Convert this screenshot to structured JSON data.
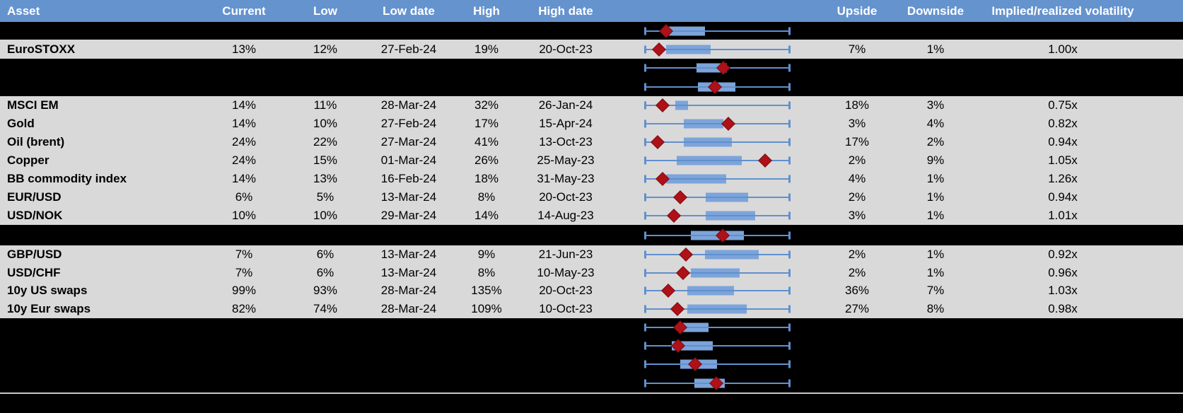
{
  "columns": [
    {
      "key": "asset",
      "label": "Asset"
    },
    {
      "key": "current",
      "label": "Current"
    },
    {
      "key": "low",
      "label": "Low"
    },
    {
      "key": "low_date",
      "label": "Low date"
    },
    {
      "key": "high",
      "label": "High"
    },
    {
      "key": "high_date",
      "label": "High date"
    },
    {
      "key": "upside",
      "label": "Upside"
    },
    {
      "key": "downside",
      "label": "Downside"
    },
    {
      "key": "implied_realized",
      "label": "Implied/realized volatility"
    }
  ],
  "colors": {
    "header_bg": "#6593CE",
    "header_text": "#ffffff",
    "light_row_bg": "#D9D9D9",
    "dark_row_bg": "#000000",
    "box_fill": "#7CA4DA",
    "whisker_line": "#6090CE",
    "marker_red": "#AE1118",
    "bottom_divider": "#C8C8C8"
  },
  "rows": [
    {
      "kind": "spacer",
      "asset": null
    },
    {
      "kind": "data",
      "asset": "EuroSTOXX",
      "current": "13%",
      "low": "12%",
      "low_date": "27-Feb-24",
      "high": "19%",
      "high_date": "20-Oct-23",
      "upside": "7%",
      "downside": "1%",
      "implied_realized": "1.00x"
    },
    {
      "kind": "spacer",
      "asset": null
    },
    {
      "kind": "spacer",
      "asset": null
    },
    {
      "kind": "data",
      "asset": "MSCI EM",
      "current": "14%",
      "low": "11%",
      "low_date": "28-Mar-24",
      "high": "32%",
      "high_date": "26-Jan-24",
      "upside": "18%",
      "downside": "3%",
      "implied_realized": "0.75x"
    },
    {
      "kind": "data",
      "asset": "Gold",
      "current": "14%",
      "low": "10%",
      "low_date": "27-Feb-24",
      "high": "17%",
      "high_date": "15-Apr-24",
      "upside": "3%",
      "downside": "4%",
      "implied_realized": "0.82x"
    },
    {
      "kind": "data",
      "asset": "Oil (brent)",
      "current": "24%",
      "low": "22%",
      "low_date": "27-Mar-24",
      "high": "41%",
      "high_date": "13-Oct-23",
      "upside": "17%",
      "downside": "2%",
      "implied_realized": "0.94x"
    },
    {
      "kind": "data",
      "asset": "Copper",
      "current": "24%",
      "low": "15%",
      "low_date": "01-Mar-24",
      "high": "26%",
      "high_date": "25-May-23",
      "upside": "2%",
      "downside": "9%",
      "implied_realized": "1.05x"
    },
    {
      "kind": "data",
      "asset": "BB commodity index",
      "current": "14%",
      "low": "13%",
      "low_date": "16-Feb-24",
      "high": "18%",
      "high_date": "31-May-23",
      "upside": "4%",
      "downside": "1%",
      "implied_realized": "1.26x"
    },
    {
      "kind": "data",
      "asset": "EUR/USD",
      "current": "6%",
      "low": "5%",
      "low_date": "13-Mar-24",
      "high": "8%",
      "high_date": "20-Oct-23",
      "upside": "2%",
      "downside": "1%",
      "implied_realized": "0.94x"
    },
    {
      "kind": "data",
      "asset": "USD/NOK",
      "current": "10%",
      "low": "10%",
      "low_date": "29-Mar-24",
      "high": "14%",
      "high_date": "14-Aug-23",
      "upside": "3%",
      "downside": "1%",
      "implied_realized": "1.01x"
    },
    {
      "kind": "spacer",
      "asset": null
    },
    {
      "kind": "data",
      "asset": "GBP/USD",
      "current": "7%",
      "low": "6%",
      "low_date": "13-Mar-24",
      "high": "9%",
      "high_date": "21-Jun-23",
      "upside": "2%",
      "downside": "1%",
      "implied_realized": "0.92x"
    },
    {
      "kind": "data",
      "asset": "USD/CHF",
      "current": "7%",
      "low": "6%",
      "low_date": "13-Mar-24",
      "high": "8%",
      "high_date": "10-May-23",
      "upside": "2%",
      "downside": "1%",
      "implied_realized": "0.96x"
    },
    {
      "kind": "data",
      "asset": "10y US swaps",
      "current": "99%",
      "low": "93%",
      "low_date": "28-Mar-24",
      "high": "135%",
      "high_date": "20-Oct-23",
      "upside": "36%",
      "downside": "7%",
      "implied_realized": "1.03x"
    },
    {
      "kind": "data",
      "asset": "10y Eur swaps",
      "current": "82%",
      "low": "74%",
      "low_date": "28-Mar-24",
      "high": "109%",
      "high_date": "10-Oct-23",
      "upside": "27%",
      "downside": "8%",
      "implied_realized": "0.98x"
    },
    {
      "kind": "spacer",
      "asset": null
    },
    {
      "kind": "spacer",
      "asset": null
    },
    {
      "kind": "spacer",
      "asset": null
    },
    {
      "kind": "spacer",
      "asset": null
    }
  ],
  "chart_data": {
    "type": "box_whisker",
    "orientation": "horizontal",
    "scale": {
      "min": 0,
      "max": 1,
      "note": "positions normalized to whisker span; every row's whiskers cover the full range"
    },
    "marker_glyph": "red diamond",
    "rows": [
      {
        "label": null,
        "whisker_low": 0,
        "box_low": 0.166,
        "box_high": 0.415,
        "whisker_high": 1,
        "marker": 0.146
      },
      {
        "label": "EuroSTOXX",
        "whisker_low": 0,
        "box_low": 0.146,
        "box_high": 0.454,
        "whisker_high": 1,
        "marker": 0.098
      },
      {
        "label": null,
        "whisker_low": 0,
        "box_low": 0.356,
        "box_high": 0.566,
        "whisker_high": 1,
        "marker": 0.541
      },
      {
        "label": null,
        "whisker_low": 0,
        "box_low": 0.366,
        "box_high": 0.624,
        "whisker_high": 1,
        "marker": 0.483
      },
      {
        "label": "MSCI EM",
        "whisker_low": 0,
        "box_low": 0.21,
        "box_high": 0.298,
        "whisker_high": 1,
        "marker": 0.122
      },
      {
        "label": "Gold",
        "whisker_low": 0,
        "box_low": 0.268,
        "box_high": 0.541,
        "whisker_high": 1,
        "marker": 0.576
      },
      {
        "label": "Oil (brent)",
        "whisker_low": 0,
        "box_low": 0.268,
        "box_high": 0.6,
        "whisker_high": 1,
        "marker": 0.088
      },
      {
        "label": "Copper",
        "whisker_low": 0,
        "box_low": 0.22,
        "box_high": 0.668,
        "whisker_high": 1,
        "marker": 0.829
      },
      {
        "label": "BB commodity index",
        "whisker_low": 0,
        "box_low": 0.146,
        "box_high": 0.561,
        "whisker_high": 1,
        "marker": 0.122
      },
      {
        "label": "EUR/USD",
        "whisker_low": 0,
        "box_low": 0.42,
        "box_high": 0.712,
        "whisker_high": 1,
        "marker": 0.244
      },
      {
        "label": "USD/NOK",
        "whisker_low": 0,
        "box_low": 0.42,
        "box_high": 0.761,
        "whisker_high": 1,
        "marker": 0.2
      },
      {
        "label": null,
        "whisker_low": 0,
        "box_low": 0.317,
        "box_high": 0.683,
        "whisker_high": 1,
        "marker": 0.537
      },
      {
        "label": "GBP/USD",
        "whisker_low": 0,
        "box_low": 0.415,
        "box_high": 0.785,
        "whisker_high": 1,
        "marker": 0.283
      },
      {
        "label": "USD/CHF",
        "whisker_low": 0,
        "box_low": 0.317,
        "box_high": 0.654,
        "whisker_high": 1,
        "marker": 0.263
      },
      {
        "label": "10y US swaps",
        "whisker_low": 0,
        "box_low": 0.293,
        "box_high": 0.615,
        "whisker_high": 1,
        "marker": 0.161
      },
      {
        "label": "10y Eur swaps",
        "whisker_low": 0,
        "box_low": 0.293,
        "box_high": 0.702,
        "whisker_high": 1,
        "marker": 0.224
      },
      {
        "label": null,
        "whisker_low": 0,
        "box_low": 0.249,
        "box_high": 0.439,
        "whisker_high": 1,
        "marker": 0.244
      },
      {
        "label": null,
        "whisker_low": 0,
        "box_low": 0.185,
        "box_high": 0.468,
        "whisker_high": 1,
        "marker": 0.229
      },
      {
        "label": null,
        "whisker_low": 0,
        "box_low": 0.244,
        "box_high": 0.498,
        "whisker_high": 1,
        "marker": 0.346
      },
      {
        "label": null,
        "whisker_low": 0,
        "box_low": 0.341,
        "box_high": 0.551,
        "whisker_high": 1,
        "marker": 0.493
      }
    ]
  }
}
